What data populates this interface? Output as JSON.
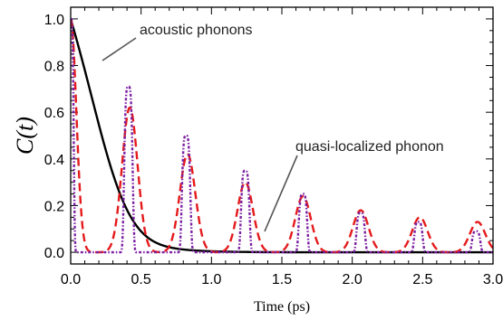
{
  "chart_data": {
    "type": "line",
    "xlabel": "Time (ps)",
    "ylabel": "C(t)",
    "xlim": [
      0,
      3.0
    ],
    "ylim": [
      -0.05,
      1.05
    ],
    "x_ticks": [
      "0.0",
      "0.5",
      "1.0",
      "1.5",
      "2.0",
      "2.5",
      "3.0"
    ],
    "y_ticks": [
      "0.0",
      "0.2",
      "0.4",
      "0.6",
      "0.8",
      "1.0"
    ],
    "grid": false,
    "series": [
      {
        "color": "#000000",
        "style": "solid",
        "decay_time_ps": 0.24,
        "sample_points": [
          [
            0.0,
            1.0
          ],
          [
            0.2,
            0.5
          ],
          [
            0.4,
            0.2
          ],
          [
            0.6,
            0.07
          ],
          [
            1.0,
            0.008
          ],
          [
            1.5,
            0.0
          ]
        ]
      },
      {
        "color": "#e41a1c",
        "style": "dashed",
        "period_ps": 0.4125,
        "peak_times_ps": [
          0.0,
          0.42,
          0.83,
          1.24,
          1.65,
          2.06,
          2.48,
          2.89
        ],
        "peak_values": [
          1.0,
          0.62,
          0.42,
          0.3,
          0.24,
          0.18,
          0.15,
          0.13
        ]
      },
      {
        "color": "#7b1fa2",
        "style": "dotted",
        "period_ps": 0.4125,
        "peak_times_ps": [
          0.0,
          0.41,
          0.82,
          1.24,
          1.65,
          2.06,
          2.47,
          2.88
        ],
        "peak_values": [
          1.0,
          0.71,
          0.5,
          0.35,
          0.25,
          0.17,
          0.13,
          0.09
        ]
      }
    ],
    "annotations": [
      {
        "text": "acoustic phonons",
        "points_to": [
          0.17,
          0.84
        ]
      },
      {
        "text": "quasi-localized phonon",
        "points_to": [
          1.35,
          0.06
        ]
      }
    ]
  }
}
